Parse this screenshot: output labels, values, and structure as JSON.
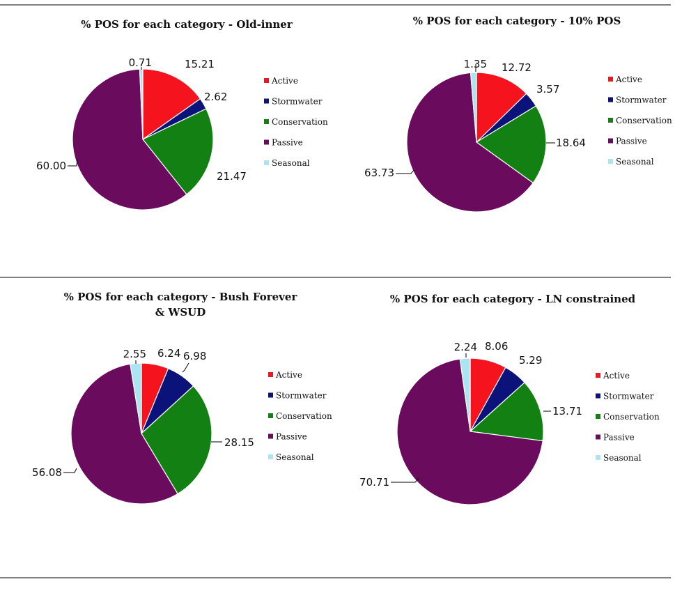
{
  "chart_data": [
    {
      "type": "pie",
      "title": "% POS for each category - Old-inner",
      "categories": [
        "Active",
        "Stormwater",
        "Conservation",
        "Passive",
        "Seasonal"
      ],
      "values": [
        15.21,
        2.62,
        21.47,
        60.0,
        0.71
      ],
      "data_labels": [
        "15.21",
        "2.62",
        "21.47",
        "60.00",
        "0.71"
      ],
      "legend_position": "right"
    },
    {
      "type": "pie",
      "title": "% POS for each category - 10% POS",
      "categories": [
        "Active",
        "Stormwater",
        "Conservation",
        "Passive",
        "Seasonal"
      ],
      "values": [
        12.72,
        3.57,
        18.64,
        63.73,
        1.35
      ],
      "data_labels": [
        "12.72",
        "3.57",
        "18.64",
        "63.73",
        "1.35"
      ],
      "legend_position": "right"
    },
    {
      "type": "pie",
      "title": "% POS for each category - Bush Forever & WSUD",
      "title_lines": [
        "% POS for each category - Bush Forever",
        "& WSUD"
      ],
      "categories": [
        "Active",
        "Stormwater",
        "Conservation",
        "Passive",
        "Seasonal"
      ],
      "values": [
        6.24,
        6.98,
        28.15,
        56.08,
        2.55
      ],
      "data_labels": [
        "6.24",
        "6.98",
        "28.15",
        "56.08",
        "2.55"
      ],
      "legend_position": "right"
    },
    {
      "type": "pie",
      "title": "% POS for each category - LN constrained",
      "categories": [
        "Active",
        "Stormwater",
        "Conservation",
        "Passive",
        "Seasonal"
      ],
      "values": [
        8.06,
        5.29,
        13.71,
        70.71,
        2.24
      ],
      "data_labels": [
        "8.06",
        "5.29",
        "13.71",
        "70.71",
        "2.24"
      ],
      "legend_position": "right"
    }
  ],
  "colors": {
    "Active": "#f5141e",
    "Stormwater": "#0b127a",
    "Conservation": "#128012",
    "Passive": "#6a0b5e",
    "Seasonal": "#a9e6f2"
  }
}
